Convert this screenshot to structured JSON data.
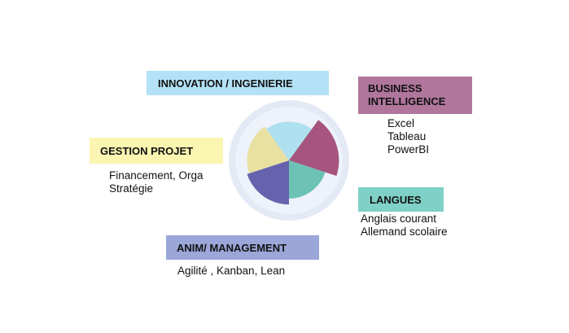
{
  "colors": {
    "innovation": "#b3e2f7",
    "business_intelligence": "#b0769c",
    "gestion_projet": "#faf5b1",
    "langues": "#7fd1c7",
    "management": "#9ba6d9",
    "wheel_ring": "#e3e9f5",
    "wheel_ring_inner": "#eef2fa"
  },
  "center_graphic": {
    "type": "polar-area",
    "segments": [
      {
        "name": "innovation",
        "color": "#aee0f0",
        "level": 0.72
      },
      {
        "name": "business-intelligence",
        "color": "#a5557e",
        "level": 0.93
      },
      {
        "name": "langues",
        "color": "#6cc2b4",
        "level": 0.71
      },
      {
        "name": "management",
        "color": "#6762ae",
        "level": 0.82
      },
      {
        "name": "gestion-projet",
        "color": "#e9e1a2",
        "level": 0.78
      }
    ]
  },
  "domains": {
    "innovation": {
      "title": "INNOVATION / INGENIERIE"
    },
    "business_intelligence": {
      "title_line1": "BUSINESS",
      "title_line2": "INTELLIGENCE",
      "items": [
        "Excel",
        "Tableau",
        "PowerBI"
      ]
    },
    "gestion_projet": {
      "title": "GESTION PROJET",
      "items": [
        "Financement, Orga",
        "Stratégie"
      ]
    },
    "langues": {
      "title": "LANGUES",
      "items": [
        "Anglais courant",
        "Allemand scolaire"
      ]
    },
    "management": {
      "title": "ANIM/ MANAGEMENT",
      "items": [
        "Agilité , Kanban, Lean"
      ]
    }
  }
}
